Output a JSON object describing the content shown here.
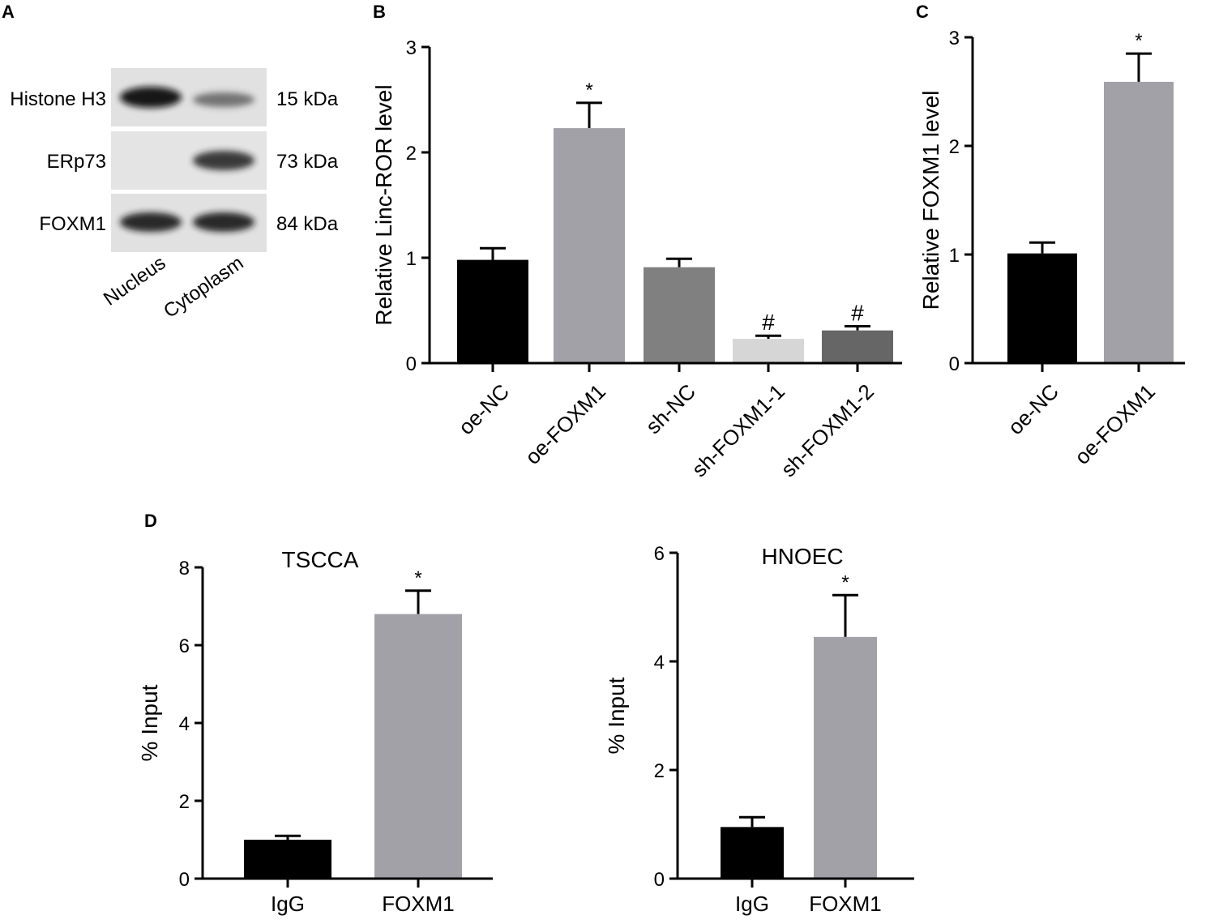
{
  "panel_labels": [
    "A",
    "B",
    "C",
    "D"
  ],
  "blot": {
    "rows": [
      {
        "protein": "Histone H3",
        "size": "15 kDa",
        "nucleus": 0.95,
        "cytoplasm": 0.6
      },
      {
        "protein": "ERp73",
        "size": "73 kDa",
        "nucleus": 0.0,
        "cytoplasm": 0.85
      },
      {
        "protein": "FOXM1",
        "size": "84 kDa",
        "nucleus": 0.9,
        "cytoplasm": 0.9
      }
    ],
    "lanes": [
      "Nucleus",
      "Cytoplasm"
    ]
  },
  "chart_data": [
    {
      "id": "B",
      "type": "bar",
      "title": "",
      "ylabel": "Relative Linc-ROR  level",
      "xlabel": "",
      "ylim": [
        0,
        3
      ],
      "yticks": [
        0,
        1,
        2,
        3
      ],
      "categories": [
        "oe-NC",
        "oe-FOXM1",
        "sh-NC",
        "sh-FOXM1-1",
        "sh-FOXM1-2"
      ],
      "values": [
        0.98,
        2.23,
        0.91,
        0.23,
        0.31
      ],
      "errors": [
        0.11,
        0.24,
        0.08,
        0.03,
        0.04
      ],
      "annotations": [
        "",
        "*",
        "",
        "#",
        "#"
      ],
      "colors": [
        "#000000",
        "#a2a1a8",
        "#808080",
        "#d6d6d6",
        "#666666"
      ]
    },
    {
      "id": "C",
      "type": "bar",
      "title": "",
      "ylabel": "Relative FOXM1  level",
      "xlabel": "",
      "ylim": [
        0,
        3
      ],
      "yticks": [
        0,
        1,
        2,
        3
      ],
      "categories": [
        "oe-NC",
        "oe-FOXM1"
      ],
      "values": [
        1.01,
        2.59
      ],
      "errors": [
        0.1,
        0.26
      ],
      "annotations": [
        "",
        "*"
      ],
      "colors": [
        "#000000",
        "#a2a1a8"
      ]
    },
    {
      "id": "D1",
      "type": "bar",
      "title": "TSCCA",
      "ylabel": "% Input",
      "xlabel": "",
      "ylim": [
        0,
        8
      ],
      "yticks": [
        0,
        2,
        4,
        6,
        8
      ],
      "categories": [
        "IgG",
        "FOXM1"
      ],
      "values": [
        1.0,
        6.8
      ],
      "errors": [
        0.1,
        0.6
      ],
      "annotations": [
        "",
        "*"
      ],
      "colors": [
        "#000000",
        "#a2a1a8"
      ]
    },
    {
      "id": "D2",
      "type": "bar",
      "title": "HNOEC",
      "ylabel": "% Input",
      "xlabel": "",
      "ylim": [
        0,
        6
      ],
      "yticks": [
        0,
        2,
        4,
        6
      ],
      "categories": [
        "IgG",
        "FOXM1"
      ],
      "values": [
        0.95,
        4.45
      ],
      "errors": [
        0.18,
        0.77
      ],
      "annotations": [
        "",
        "*"
      ],
      "colors": [
        "#000000",
        "#a2a1a8"
      ]
    }
  ]
}
